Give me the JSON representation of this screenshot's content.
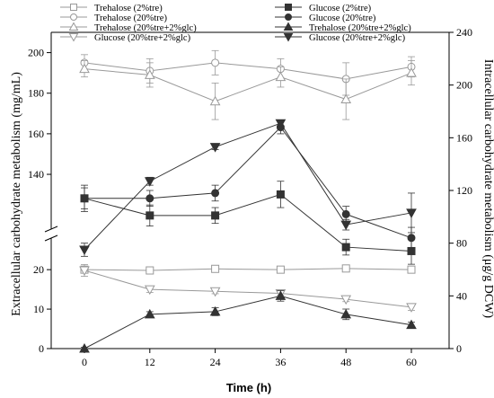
{
  "chart_data": {
    "type": "line",
    "xlabel": "Time (h)",
    "ylabel_left": "Extracellular carbohydrate metabolism (mg/mL)",
    "ylabel_right": "Intracellular carbohydrate metabolism (μg/g DCW)",
    "x": [
      0,
      12,
      24,
      36,
      48,
      60
    ],
    "x_ticks": [
      "0",
      "12",
      "24",
      "36",
      "48",
      "60"
    ],
    "ylim_left_lower": [
      0,
      28
    ],
    "ylim_left_upper": [
      113,
      210
    ],
    "y_left_break": true,
    "y_left_ticks_lower": [
      "0",
      "10",
      "20"
    ],
    "y_left_ticks_upper": [
      "140",
      "160",
      "180",
      "200"
    ],
    "ylim_right": [
      0,
      240
    ],
    "y_right_ticks": [
      "0",
      "40",
      "80",
      "120",
      "160",
      "200",
      "240"
    ],
    "legend_position": "top",
    "series": [
      {
        "name": "Trehalose (2%tre)",
        "axis": "left",
        "marker": "square-open",
        "color": "#999999",
        "values": [
          20.0,
          19.8,
          20.2,
          20.0,
          20.3,
          20.0
        ],
        "errors": [
          0.5,
          0.4,
          0.4,
          0.4,
          0.5,
          0.4
        ]
      },
      {
        "name": "Trehalose (20%tre)",
        "axis": "left",
        "marker": "circle-open",
        "color": "#999999",
        "values": [
          195,
          191,
          195,
          192,
          187,
          193
        ],
        "errors": [
          4,
          6,
          6,
          5,
          8,
          5
        ]
      },
      {
        "name": "Trehalose (20%tre+2%glc)",
        "axis": "left",
        "marker": "triangle-up-open",
        "color": "#999999",
        "values": [
          192,
          189,
          176,
          188,
          177,
          190
        ],
        "errors": [
          4,
          6,
          9,
          5,
          10,
          6
        ]
      },
      {
        "name": "Glucose (20%tre+2%glc)",
        "axis": "left",
        "marker": "triangle-down-open",
        "color": "#999999",
        "values": [
          19.8,
          15.0,
          14.5,
          14.0,
          12.5,
          10.5
        ],
        "errors": [
          1.5,
          0.8,
          0.6,
          0.5,
          0.6,
          0.8
        ]
      },
      {
        "name": "Glucose (2%tre)",
        "axis": "right",
        "marker": "square-filled",
        "color": "#333333",
        "values": [
          114,
          101,
          101,
          117,
          77,
          74
        ],
        "errors": [
          10,
          8,
          6,
          10,
          6,
          10
        ]
      },
      {
        "name": "Glucose (20%tre)",
        "axis": "right",
        "marker": "circle-filled",
        "color": "#333333",
        "values": [
          114,
          114,
          118,
          168,
          102,
          84
        ],
        "errors": [
          8,
          6,
          6,
          5,
          6,
          8
        ]
      },
      {
        "name": "Trehalose (20%tre+2%glc)",
        "axis": "right",
        "marker": "triangle-up-filled",
        "color": "#333333",
        "values": [
          0,
          26,
          28,
          40,
          26,
          18
        ],
        "errors": [
          1,
          2,
          3,
          4,
          4,
          2
        ]
      },
      {
        "name": "Glucose (20%tre+2%glc)",
        "axis": "right",
        "marker": "triangle-down-filled",
        "color": "#333333",
        "values": [
          75,
          127,
          153,
          171,
          94,
          103
        ],
        "errors": [
          5,
          3,
          2,
          2,
          4,
          15
        ]
      }
    ]
  }
}
